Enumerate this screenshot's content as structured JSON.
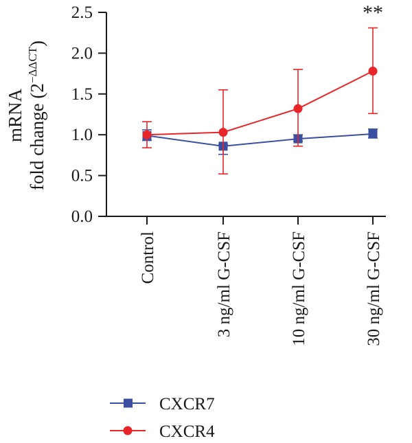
{
  "chart_data": {
    "type": "line",
    "ylabel_line1": "mRNA",
    "ylabel_line2_main": "fold change (2",
    "ylabel_line2_sup": "−ΔΔCT",
    "ylabel_line2_close": ")",
    "ylim": [
      0,
      2.5
    ],
    "yticks": [
      "0.0",
      "0.5",
      "1.0",
      "1.5",
      "2.0",
      "2.5"
    ],
    "categories": [
      "Control",
      "3 ng/ml G-CSF",
      "10 ng/ml G-CSF",
      "30 ng/ml G-CSF"
    ],
    "series": [
      {
        "name": "CXCR7",
        "marker": "square",
        "color": "#3a4fa0",
        "values": [
          0.99,
          0.86,
          0.95,
          1.01
        ],
        "err_low": [
          0.93,
          0.76,
          0.92,
          0.96
        ],
        "err_high": [
          1.06,
          0.88,
          1.0,
          1.07
        ]
      },
      {
        "name": "CXCR4",
        "marker": "circle",
        "color": "#e8262a",
        "values": [
          1.0,
          1.03,
          1.32,
          1.78
        ],
        "err_low": [
          0.84,
          0.52,
          0.86,
          1.26
        ],
        "err_high": [
          1.16,
          1.55,
          1.8,
          2.31
        ]
      }
    ],
    "annotations": [
      {
        "text": "**",
        "category_index": 3,
        "y": 2.45
      }
    ],
    "legend_placement": "bottom-left",
    "grid": false
  }
}
